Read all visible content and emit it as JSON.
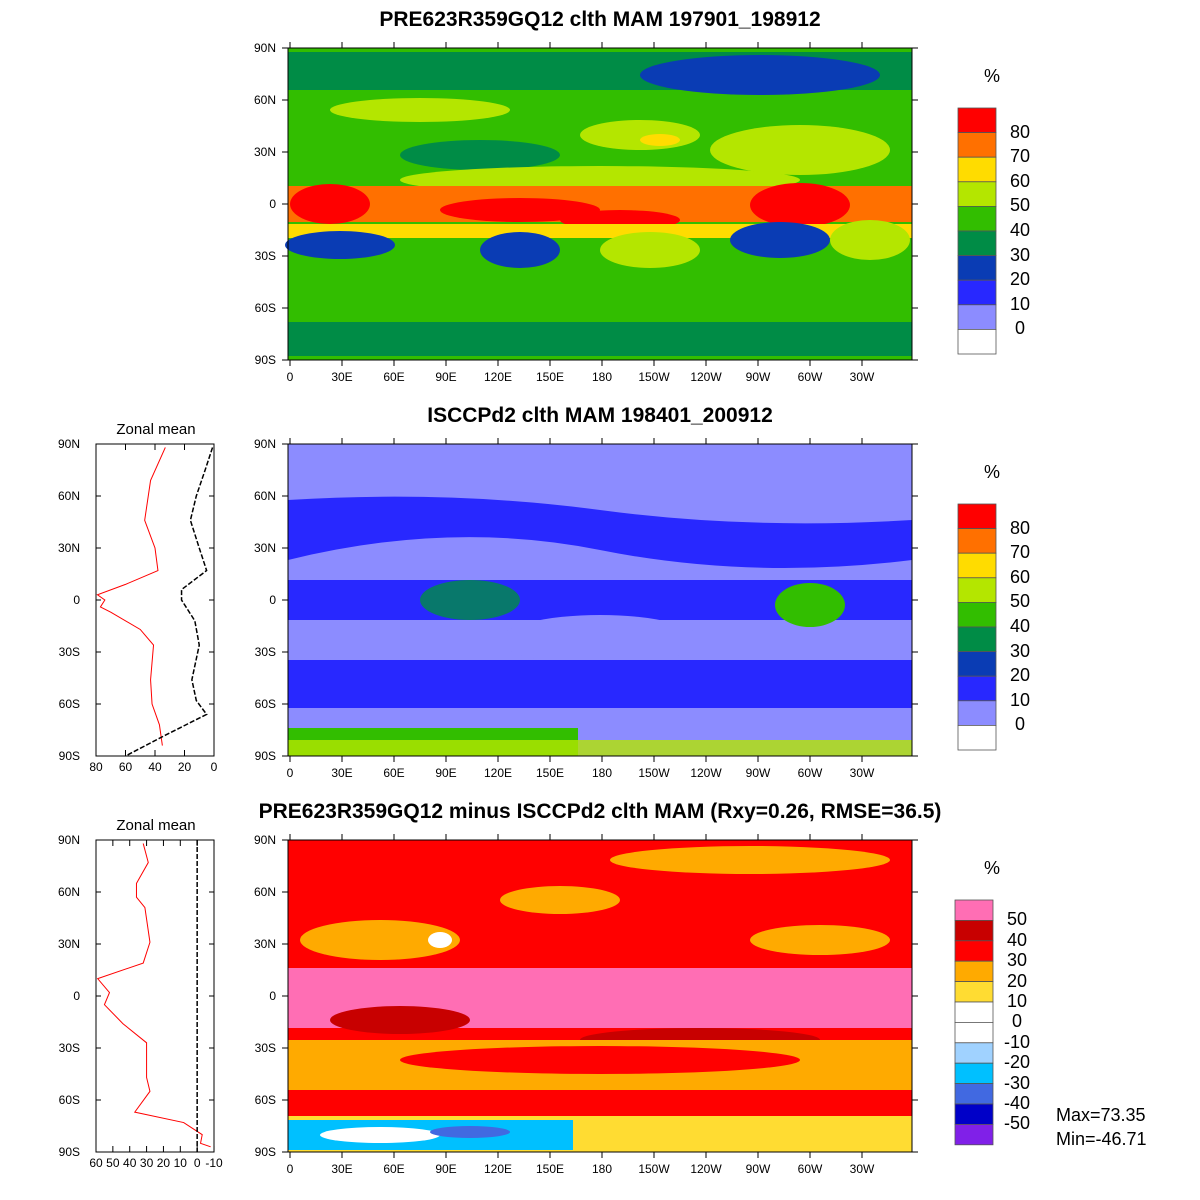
{
  "panels": [
    {
      "title": "PRE623R359GQ12 clth MAM 197901_198912",
      "units": "%",
      "colorbar": {
        "labels": [
          "80",
          "70",
          "60",
          "50",
          "40",
          "30",
          "20",
          "10",
          "0"
        ],
        "colors": [
          "#ff0000",
          "#ff7000",
          "#ffdc00",
          "#b4e600",
          "#32be00",
          "#008c46",
          "#0a3cb4",
          "#2828ff",
          "#8c8cff",
          "#ffffff"
        ]
      }
    },
    {
      "title": "ISCCPd2 clth MAM 198401_200912",
      "units": "%",
      "colorbar": {
        "labels": [
          "80",
          "70",
          "60",
          "50",
          "40",
          "30",
          "20",
          "10",
          "0"
        ],
        "colors": [
          "#ff0000",
          "#ff7000",
          "#ffdc00",
          "#b4e600",
          "#32be00",
          "#008c46",
          "#0a3cb4",
          "#2828ff",
          "#8c8cff",
          "#ffffff"
        ]
      },
      "zonal_mean": {
        "title": "Zonal mean",
        "xticks": [
          "80",
          "60",
          "40",
          "20",
          "0"
        ],
        "red": [
          [
            88,
            33
          ],
          [
            69,
            43
          ],
          [
            46,
            47
          ],
          [
            30,
            40
          ],
          [
            17,
            38
          ],
          [
            9,
            60
          ],
          [
            3,
            79
          ],
          [
            0,
            74
          ],
          [
            -4,
            77
          ],
          [
            -7,
            70
          ],
          [
            -17,
            50
          ],
          [
            -26,
            41
          ],
          [
            -46,
            43
          ],
          [
            -60,
            42
          ],
          [
            -72,
            37
          ],
          [
            -84,
            35
          ]
        ],
        "black": [
          [
            88,
            1
          ],
          [
            75,
            6
          ],
          [
            60,
            12
          ],
          [
            46,
            16
          ],
          [
            30,
            10
          ],
          [
            17,
            5
          ],
          [
            6,
            22
          ],
          [
            0,
            22
          ],
          [
            -12,
            13
          ],
          [
            -26,
            10
          ],
          [
            -46,
            15
          ],
          [
            -58,
            12
          ],
          [
            -66,
            5
          ],
          [
            -78,
            33
          ],
          [
            -90,
            60
          ]
        ]
      }
    },
    {
      "title": "PRE623R359GQ12 minus ISCCPd2 clth MAM (Rxy=0.26, RMSE=36.5)",
      "units": "%",
      "colorbar": {
        "labels": [
          "50",
          "40",
          "30",
          "20",
          "10",
          "0",
          "-10",
          "-20",
          "-30",
          "-40",
          "-50"
        ],
        "colors": [
          "#ff6eb4",
          "#c80000",
          "#ff0000",
          "#ffaa00",
          "#ffdc32",
          "#ffffff",
          "#ffffff",
          "#a0d2ff",
          "#00c0ff",
          "#4169e1",
          "#0000c8",
          "#8020e8"
        ]
      },
      "zonal_mean": {
        "title": "Zonal mean",
        "xticks": [
          "60",
          "50",
          "40",
          "30",
          "20",
          "10",
          "0",
          "-10"
        ],
        "red": [
          [
            88,
            32
          ],
          [
            77,
            29
          ],
          [
            65,
            36
          ],
          [
            57,
            36
          ],
          [
            51,
            31
          ],
          [
            31,
            28
          ],
          [
            19,
            32
          ],
          [
            10,
            59
          ],
          [
            2,
            52
          ],
          [
            -5,
            55
          ],
          [
            -16,
            44
          ],
          [
            -27,
            30
          ],
          [
            -47,
            30
          ],
          [
            -55,
            28
          ],
          [
            -67,
            37
          ],
          [
            -73,
            8
          ],
          [
            -80,
            -3
          ],
          [
            -85,
            -2
          ],
          [
            -87,
            -8
          ]
        ]
      },
      "max": "Max=73.35",
      "min": "Min=-46.71"
    }
  ],
  "lat_labels": [
    "90N",
    "60N",
    "30N",
    "0",
    "30S",
    "60S",
    "90S"
  ],
  "lon_labels": [
    "0",
    "30E",
    "60E",
    "90E",
    "120E",
    "150E",
    "180",
    "150W",
    "120W",
    "90W",
    "60W",
    "30W"
  ]
}
